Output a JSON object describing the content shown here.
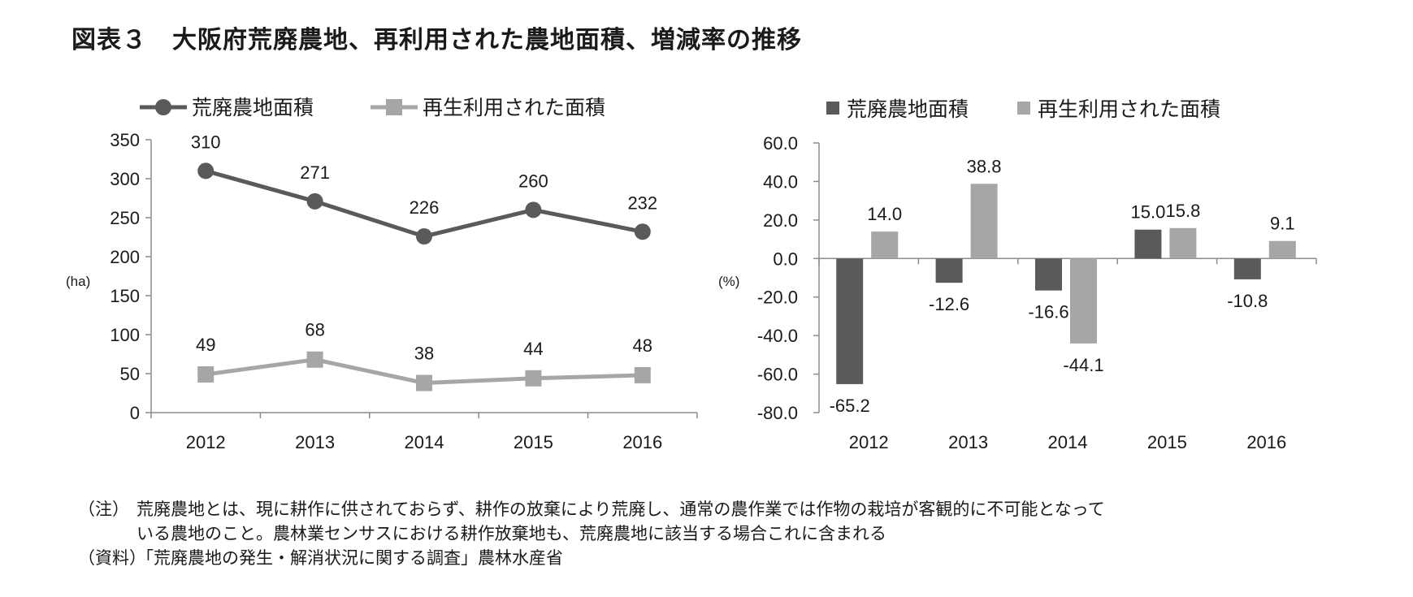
{
  "figure": {
    "title": "図表３　大阪府荒廃農地、再利用された農地面積、増減率の推移"
  },
  "chart_data": [
    {
      "type": "line",
      "x": [
        "2012",
        "2013",
        "2014",
        "2015",
        "2016"
      ],
      "series": [
        {
          "name": "荒廃農地面積",
          "values": [
            310,
            271,
            226,
            260,
            232
          ],
          "color": "#5a5a5a",
          "marker": "circle"
        },
        {
          "name": "再生利用された面積",
          "values": [
            49,
            68,
            38,
            44,
            48
          ],
          "color": "#a6a6a6",
          "marker": "square"
        }
      ],
      "ylabel": "(ha)",
      "ylim": [
        0,
        350
      ],
      "yticks": [
        "0",
        "50",
        "100",
        "150",
        "200",
        "250",
        "300",
        "350"
      ],
      "legend": "top",
      "grid": false
    },
    {
      "type": "bar",
      "categories": [
        "2012",
        "2013",
        "2014",
        "2015",
        "2016"
      ],
      "series": [
        {
          "name": "荒廃農地面積",
          "values": [
            -65.2,
            -12.6,
            -16.6,
            15.0,
            -10.8
          ],
          "labels": [
            "-65.2",
            "-12.6",
            "-16.6",
            "15.0",
            "-10.8"
          ],
          "color": "#5a5a5a"
        },
        {
          "name": "再生利用された面積",
          "values": [
            14.0,
            38.8,
            -44.1,
            15.8,
            9.1
          ],
          "labels": [
            "14.0",
            "38.8",
            "-44.1",
            "15.8",
            "9.1"
          ],
          "color": "#a6a6a6"
        }
      ],
      "ylabel": "(%)",
      "ylim": [
        -80,
        60
      ],
      "yticks": [
        "60.0",
        "40.0",
        "20.0",
        "0.0",
        "-20.0",
        "-40.0",
        "-60.0",
        "-80.0"
      ],
      "legend": "top",
      "grid": false
    }
  ],
  "notes": [
    {
      "label": "（注）",
      "lines": [
        "荒廃農地とは、現に耕作に供されておらず、耕作の放棄により荒廃し、通常の農作業では作物の栽培が客観的に不可能となって",
        "いる農地のこと。農林業センサスにおける耕作放棄地も、荒廃農地に該当する場合これに含まれる"
      ]
    },
    {
      "label": "（資料）",
      "lines": [
        "「荒廃農地の発生・解消状況に関する調査」農林水産省"
      ]
    }
  ]
}
